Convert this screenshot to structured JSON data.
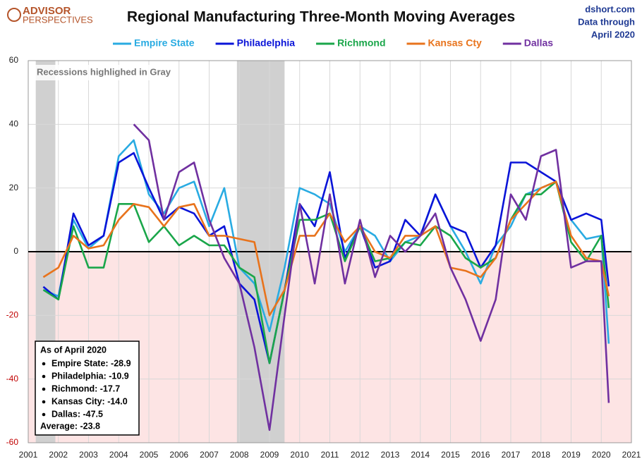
{
  "chart_data": {
    "type": "line",
    "title": "Regional Manufacturing Three-Month Moving Averages",
    "logo": [
      "ADVISOR",
      "PERSPECTIVES"
    ],
    "source": [
      "dshort.com",
      "Data through",
      "April 2020"
    ],
    "note": "Recessions highlighed in Gray",
    "recessions": [
      [
        2001.25,
        2001.9
      ],
      [
        2007.92,
        2009.5
      ]
    ],
    "recession_color": "#d0d0d0",
    "negative_fill": "#fde4e4",
    "negative_tick_color": "#c00000",
    "grid": true,
    "xlim": [
      2001,
      2021
    ],
    "xticks": [
      2001,
      2002,
      2003,
      2004,
      2005,
      2006,
      2007,
      2008,
      2009,
      2010,
      2011,
      2012,
      2013,
      2014,
      2015,
      2016,
      2017,
      2018,
      2019,
      2020,
      2021
    ],
    "ylim": [
      -60,
      60
    ],
    "yticks": [
      -60,
      -40,
      -20,
      0,
      20,
      40,
      60
    ],
    "x": [
      2001.5,
      2002,
      2002.5,
      2003,
      2003.5,
      2004,
      2004.5,
      2005,
      2005.5,
      2006,
      2006.5,
      2007,
      2007.5,
      2008,
      2008.5,
      2009,
      2009.5,
      2010,
      2010.5,
      2011,
      2011.5,
      2012,
      2012.5,
      2013,
      2013.5,
      2014,
      2014.5,
      2015,
      2015.5,
      2016,
      2016.5,
      2017,
      2017.5,
      2018,
      2018.5,
      2019,
      2019.5,
      2020,
      2020.25
    ],
    "series": [
      {
        "name": "Empire State",
        "color": "#29abe2",
        "values": [
          -12,
          -14,
          10,
          1,
          5,
          30,
          35,
          18,
          12,
          20,
          22,
          8,
          20,
          -5,
          -10,
          -25,
          -5,
          20,
          18,
          15,
          0,
          8,
          5,
          -3,
          3,
          5,
          18,
          8,
          0,
          -10,
          2,
          8,
          18,
          20,
          22,
          10,
          4,
          5,
          -28.9
        ]
      },
      {
        "name": "Philadelphia",
        "color": "#0a14d8",
        "values": [
          -11,
          -15,
          12,
          2,
          5,
          28,
          31,
          20,
          10,
          14,
          12,
          5,
          8,
          -10,
          -15,
          -35,
          -12,
          15,
          8,
          25,
          -2,
          8,
          -5,
          -3,
          10,
          5,
          18,
          8,
          6,
          -5,
          2,
          28,
          28,
          25,
          22,
          10,
          12,
          10,
          -10.9
        ]
      },
      {
        "name": "Richmond",
        "color": "#1aa64a",
        "values": [
          -12,
          -15,
          8,
          -5,
          -5,
          15,
          15,
          3,
          8,
          2,
          5,
          2,
          2,
          -5,
          -8,
          -35,
          -12,
          10,
          10,
          12,
          -3,
          8,
          -3,
          -2,
          3,
          2,
          8,
          5,
          -2,
          -5,
          -2,
          10,
          18,
          18,
          22,
          3,
          -3,
          5,
          -17.7
        ]
      },
      {
        "name": "Kansas Cty",
        "color": "#e8731c",
        "values": [
          -8,
          -5,
          5,
          1,
          2,
          10,
          15,
          14,
          8,
          14,
          15,
          5,
          5,
          4,
          3,
          -20,
          -12,
          5,
          5,
          12,
          3,
          8,
          0,
          -2,
          5,
          5,
          8,
          -5,
          -6,
          -8,
          -2,
          10,
          15,
          20,
          22,
          5,
          -2,
          -3,
          -14.0
        ]
      },
      {
        "name": "Dallas",
        "color": "#7030a0",
        "values": [
          null,
          null,
          null,
          null,
          null,
          null,
          40,
          35,
          10,
          25,
          28,
          10,
          -2,
          -10,
          -30,
          -56,
          -20,
          15,
          -10,
          18,
          -10,
          10,
          -8,
          5,
          0,
          5,
          12,
          -5,
          -15,
          -28,
          -15,
          18,
          10,
          30,
          32,
          -5,
          -3,
          -3,
          -47.5
        ]
      }
    ],
    "summary_box": {
      "title": "As of April 2020",
      "items": [
        "Empire State:  -28.9",
        "Philadelphia:  -10.9",
        "Richmond:  -17.7",
        "Kansas City:  -14.0",
        "Dallas:  -47.5"
      ],
      "average": "Average:  -23.8"
    }
  }
}
